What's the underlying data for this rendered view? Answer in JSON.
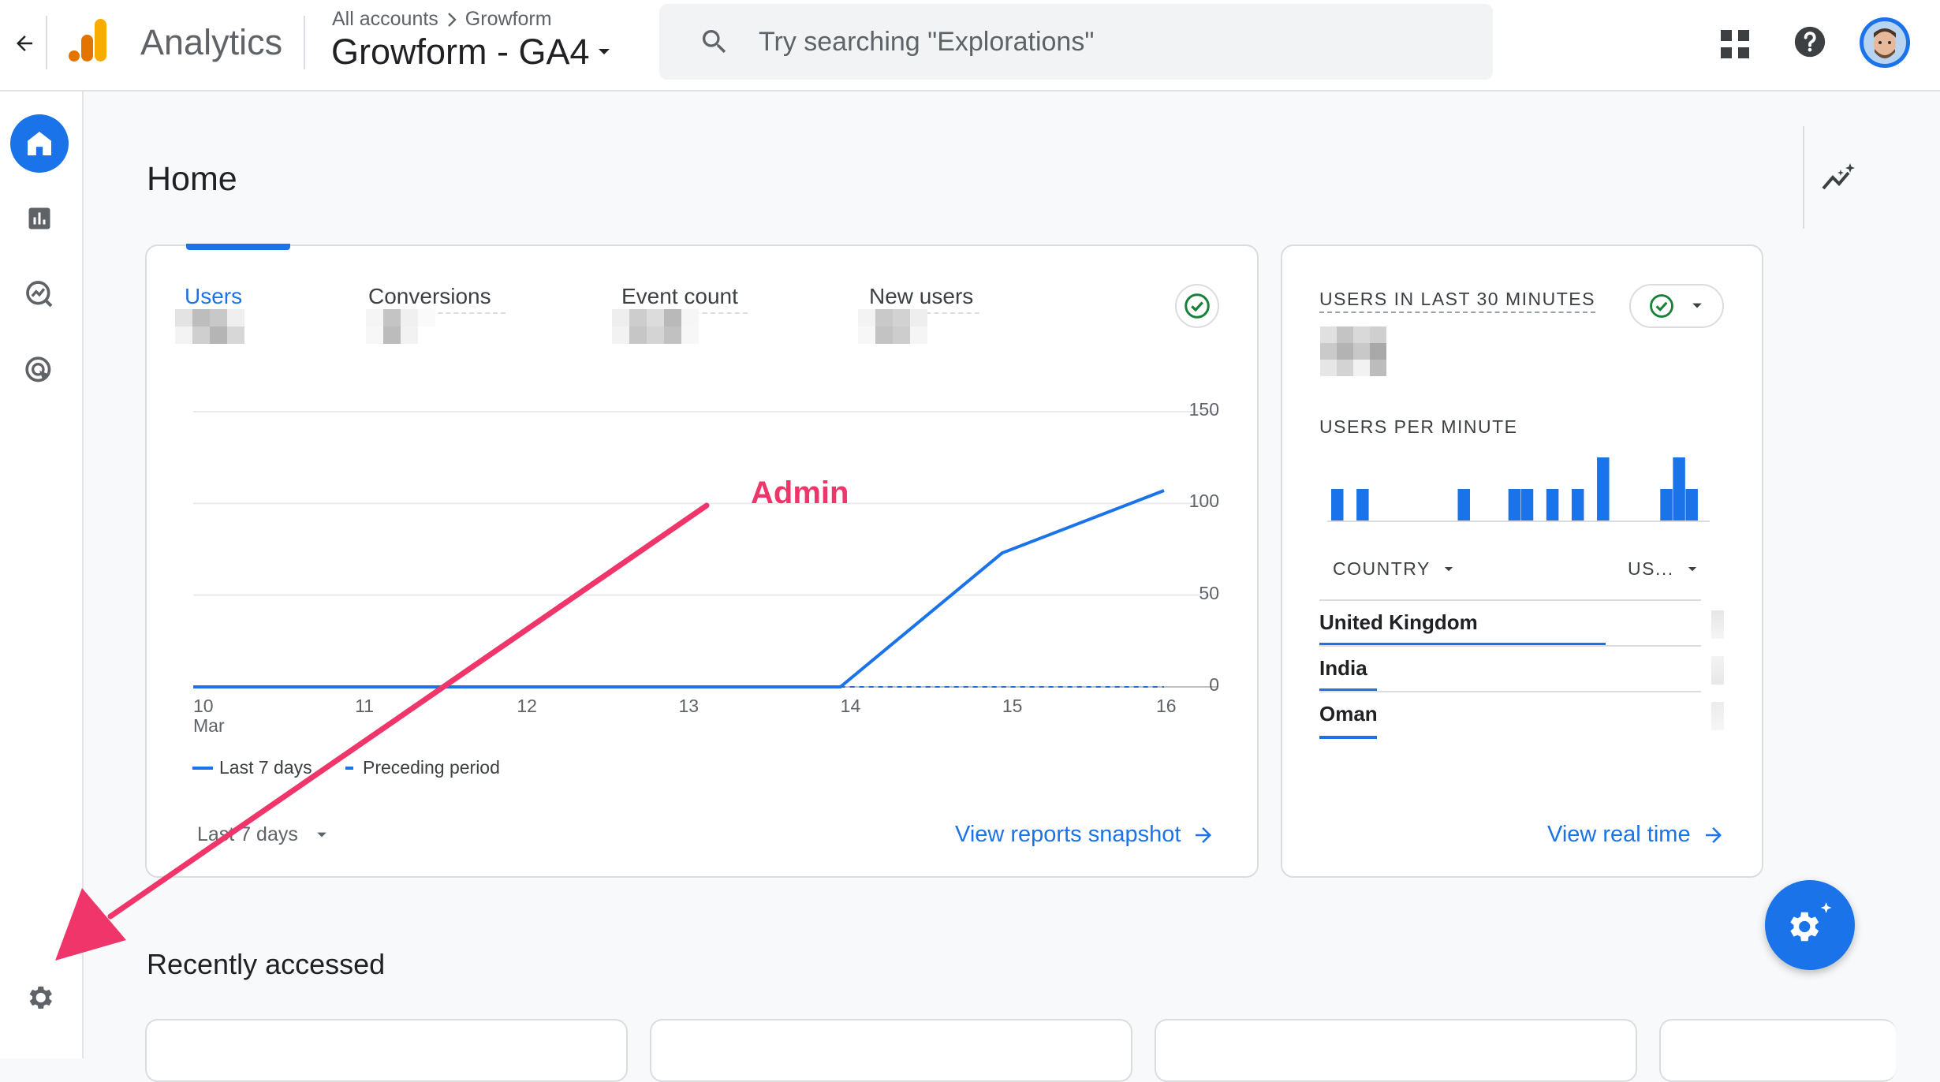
{
  "header": {
    "app_name": "Analytics",
    "breadcrumb": {
      "root": "All accounts",
      "separator": ">",
      "current": "Growform"
    },
    "property_name": "Growform - GA4",
    "search_placeholder": "Try searching \"Explorations\""
  },
  "page": {
    "title": "Home"
  },
  "overview": {
    "tabs": [
      "Users",
      "Conversions",
      "Event count",
      "New users"
    ],
    "active_tab": "Users",
    "chart_data": {
      "type": "line",
      "x": [
        "10",
        "11",
        "12",
        "13",
        "14",
        "15",
        "16"
      ],
      "x_sublabel_first": "Mar",
      "y_ticks": [
        150,
        100,
        50,
        0
      ],
      "ylim": [
        0,
        150
      ],
      "y_axis_position": "right",
      "grid": true,
      "legend_position": "bottom-left",
      "series": [
        {
          "name": "Last 7 days",
          "values": [
            0,
            0,
            0,
            0,
            0,
            73,
            107
          ],
          "style": "solid",
          "color": "#1a73e8"
        },
        {
          "name": "Preceding period",
          "values": [
            null,
            null,
            null,
            null,
            0,
            0,
            0
          ],
          "style": "dashed",
          "color": "#1a73e8"
        }
      ]
    },
    "date_range": "Last 7 days",
    "snapshot_link": "View reports snapshot"
  },
  "realtime": {
    "title": "USERS IN LAST 30 MINUTES",
    "per_minute_label": "USERS PER MINUTE",
    "chart_data": {
      "type": "bar",
      "values": [
        1,
        0,
        1,
        0,
        0,
        0,
        0,
        0,
        0,
        0,
        1,
        0,
        0,
        0,
        1,
        1,
        0,
        1,
        0,
        1,
        0,
        2,
        0,
        0,
        0,
        0,
        1,
        2,
        1,
        0
      ],
      "color": "#1a73e8"
    },
    "country_header": "COUNTRY",
    "users_header": "US...",
    "countries": [
      {
        "name": "United Kingdom",
        "share": 0.75
      },
      {
        "name": "India",
        "share": 0.15
      },
      {
        "name": "Oman",
        "share": 0.15
      }
    ],
    "real_time_link": "View real time"
  },
  "recent": {
    "title": "Recently accessed"
  },
  "annotation": {
    "label": "Admin",
    "color": "#f0356b"
  },
  "icons": {
    "back": "arrow-back-icon",
    "logo": "analytics-logo-icon",
    "apps": "apps-grid-icon",
    "help": "help-icon",
    "search": "search-icon",
    "home": "home-icon",
    "reports": "bar-chart-icon",
    "explore": "explore-icon",
    "advertising": "advertising-icon",
    "admin": "gear-icon",
    "insights": "insights-icon",
    "fab": "settings-sparkle-icon"
  },
  "colors": {
    "accent": "#1a73e8",
    "logo_orange": "#f9ab00",
    "logo_dark_orange": "#e37400"
  }
}
